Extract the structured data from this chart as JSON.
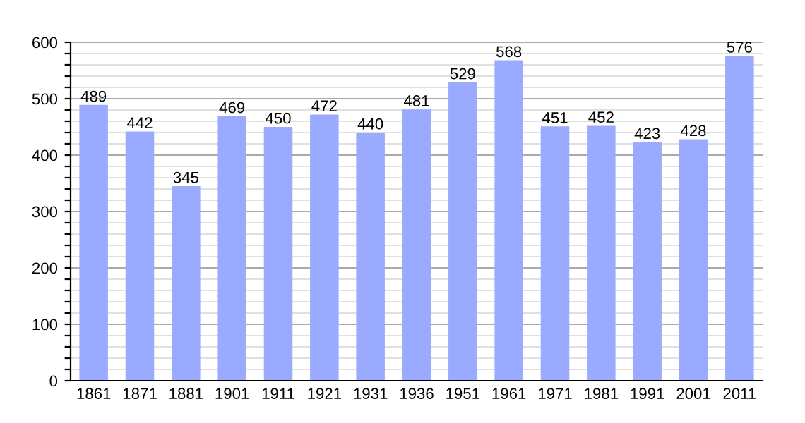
{
  "chart_data": {
    "type": "bar",
    "categories": [
      "1861",
      "1871",
      "1881",
      "1901",
      "1911",
      "1921",
      "1931",
      "1936",
      "1951",
      "1961",
      "1971",
      "1981",
      "1991",
      "2001",
      "2011"
    ],
    "values": [
      489,
      442,
      345,
      469,
      450,
      472,
      440,
      481,
      529,
      568,
      451,
      452,
      423,
      428,
      576
    ],
    "color": "#99aaff",
    "data_labels": true,
    "grid": "y",
    "ylim": [
      0,
      600
    ],
    "yticks": [
      0,
      {
        "value": 20,
        "label": null
      },
      {
        "value": 40,
        "label": null
      },
      {
        "value": 60,
        "label": null
      },
      {
        "value": 80,
        "label": null
      },
      100,
      {
        "value": 120,
        "label": null
      },
      {
        "value": 140,
        "label": null
      },
      {
        "value": 160,
        "label": null
      },
      {
        "value": 180,
        "label": null
      },
      200,
      {
        "value": 220,
        "label": null
      },
      {
        "value": 240,
        "label": null
      },
      {
        "value": 260,
        "label": null
      },
      {
        "value": 280,
        "label": null
      },
      300,
      {
        "value": 320,
        "label": null
      },
      {
        "value": 340,
        "label": null
      },
      {
        "value": 360,
        "label": null
      },
      {
        "value": 380,
        "label": null
      },
      400,
      {
        "value": 420,
        "label": null
      },
      {
        "value": 440,
        "label": null
      },
      {
        "value": 460,
        "label": null
      },
      {
        "value": 480,
        "label": null
      },
      500,
      {
        "value": 520,
        "label": null
      },
      {
        "value": 540,
        "label": null
      },
      {
        "value": 560,
        "label": null
      },
      {
        "value": 580,
        "label": null
      },
      600
    ]
  }
}
